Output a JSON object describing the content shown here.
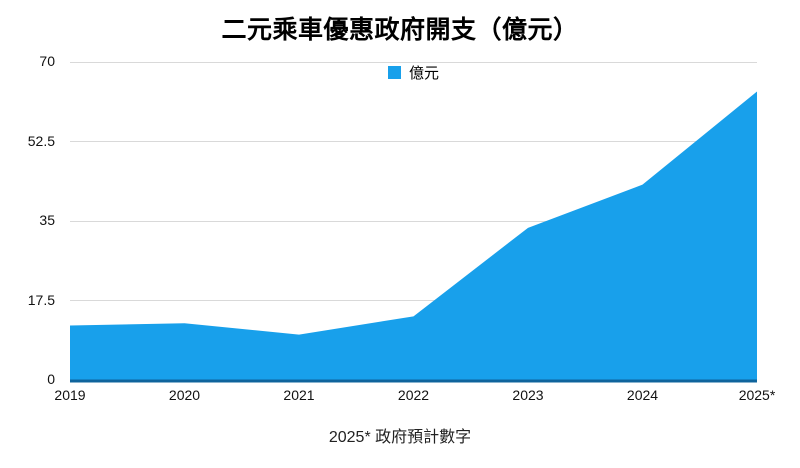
{
  "title": "二元乘車優惠政府開支（億元）",
  "legend": {
    "label": "億元"
  },
  "footnote": "2025* 政府預計數字",
  "colors": {
    "area_fill": "#18A0EB",
    "baseline": "#0F649C",
    "gridline": "#D9D9D9",
    "text": "#000000"
  },
  "chart_data": {
    "type": "area",
    "title": "二元乘車優惠政府開支（億元）",
    "categories": [
      "2019",
      "2020",
      "2021",
      "2022",
      "2023",
      "2024",
      "2025*"
    ],
    "series": [
      {
        "name": "億元",
        "values": [
          12,
          12.5,
          10,
          14,
          33.5,
          43,
          63.5
        ]
      }
    ],
    "xlabel": "",
    "ylabel": "",
    "ylim": [
      0,
      70
    ],
    "yticks": [
      0,
      17.5,
      35,
      52.5,
      70
    ],
    "ytick_labels": [
      "0",
      "17.5",
      "35",
      "52.5",
      "70"
    ],
    "grid": true,
    "legend_position": "top-center",
    "annotation": "2025* 政府預計數字"
  }
}
